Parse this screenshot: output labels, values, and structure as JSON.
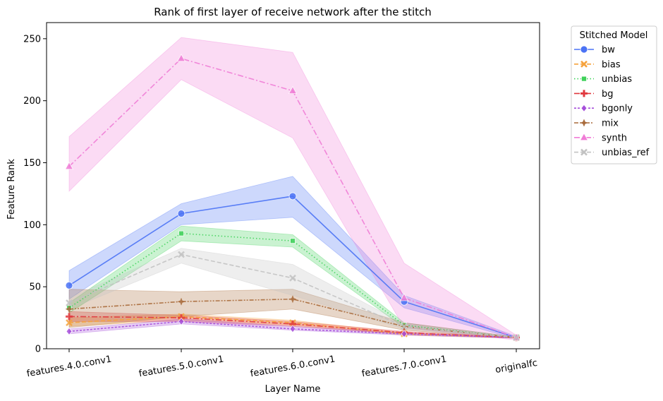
{
  "chart_data": {
    "type": "line",
    "title": "Rank of first layer of receive network after the stitch",
    "xlabel": "Layer Name",
    "ylabel": "Feature Rank",
    "categories": [
      "features.4.0.conv1",
      "features.5.0.conv1",
      "features.6.0.conv1",
      "features.7.0.conv1",
      "originalfc"
    ],
    "ylim": [
      0,
      263
    ],
    "yticks": [
      0,
      50,
      100,
      150,
      200,
      250
    ],
    "grid": false,
    "legend": {
      "title": "Stitched Model",
      "placement": "outside-right-top"
    },
    "series": [
      {
        "name": "bw",
        "color": "#4b73f5",
        "dash": "solid",
        "marker": "circle",
        "values": [
          51,
          109,
          123,
          38,
          9
        ],
        "lower": [
          40,
          100,
          106,
          33,
          8
        ],
        "upper": [
          63,
          117,
          139,
          43,
          10
        ]
      },
      {
        "name": "bias",
        "color": "#f5a23c",
        "dash": "dashed",
        "marker": "x",
        "values": [
          21,
          26,
          21,
          12,
          9
        ],
        "lower": [
          18,
          23,
          19,
          11,
          8.5
        ],
        "upper": [
          25,
          28,
          23,
          13,
          9.5
        ]
      },
      {
        "name": "unbias",
        "color": "#3fd15a",
        "dash": "dotted",
        "marker": "square",
        "values": [
          33,
          93,
          87,
          19,
          9
        ],
        "lower": [
          29,
          87,
          82,
          17,
          8.5
        ],
        "upper": [
          37,
          99,
          92,
          21,
          9.5
        ]
      },
      {
        "name": "bg",
        "color": "#e0393f",
        "dash": "dashdot",
        "marker": "plus",
        "values": [
          26,
          25,
          20,
          13,
          9
        ],
        "lower": [
          22,
          22,
          18,
          12,
          8.5
        ],
        "upper": [
          30,
          27,
          22,
          14,
          9.5
        ]
      },
      {
        "name": "bgonly",
        "color": "#a64fdb",
        "dash": "densedash",
        "marker": "diamond",
        "values": [
          14,
          22,
          16,
          12,
          9
        ],
        "lower": [
          12,
          20,
          15,
          11,
          8.5
        ],
        "upper": [
          16,
          24,
          18,
          13,
          9.5
        ]
      },
      {
        "name": "mix",
        "color": "#a86a3a",
        "dash": "dashdotdot",
        "marker": "star",
        "values": [
          32,
          38,
          40,
          18,
          9
        ],
        "lower": [
          17,
          26,
          32,
          15,
          8.5
        ],
        "upper": [
          48,
          46,
          48,
          21,
          9.5
        ]
      },
      {
        "name": "synth",
        "color": "#f07cd6",
        "dash": "dashdot",
        "marker": "triangle",
        "values": [
          147,
          234,
          208,
          41,
          9
        ],
        "lower": [
          127,
          217,
          170,
          17,
          7
        ],
        "upper": [
          171,
          251,
          239,
          69,
          11
        ]
      },
      {
        "name": "unbias_ref",
        "color": "#c2c2c2",
        "dash": "dashed",
        "marker": "x",
        "values": [
          37,
          76,
          57,
          18,
          9
        ],
        "lower": [
          32,
          69,
          43,
          16,
          8.5
        ],
        "upper": [
          41,
          81,
          68,
          20,
          9.5
        ]
      }
    ]
  }
}
